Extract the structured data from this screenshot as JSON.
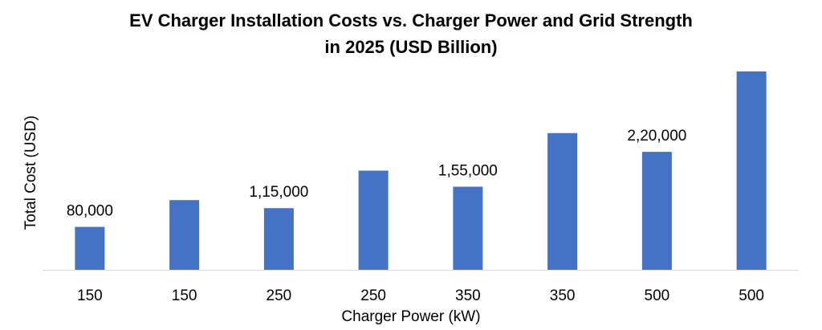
{
  "chart_data": {
    "type": "bar",
    "title": "EV Charger Installation Costs vs. Charger Power and Grid Strength in 2025 (USD Billion)",
    "title_lines": [
      "EV Charger Installation Costs vs. Charger Power and Grid Strength",
      "in 2025 (USD Billion)"
    ],
    "xlabel": "Charger Power (kW)",
    "ylabel": "Total Cost (USD)",
    "categories": [
      "150",
      "150",
      "250",
      "250",
      "350",
      "350",
      "500",
      "500"
    ],
    "values": [
      80000,
      130000,
      115000,
      185000,
      155000,
      255000,
      220000,
      370000
    ],
    "data_labels": [
      "80,000",
      "",
      "1,15,000",
      "",
      "1,55,000",
      "",
      "2,20,000",
      ""
    ],
    "ylim": [
      0,
      370000
    ],
    "grid": false,
    "legend": "none",
    "bar_color": "#4472C4"
  }
}
